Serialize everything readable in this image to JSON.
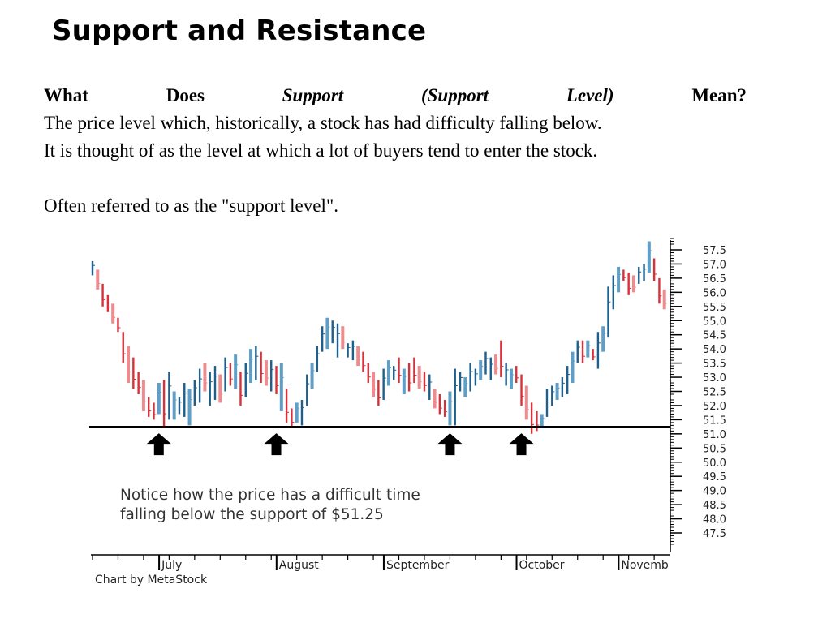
{
  "slide": {
    "title": "Support and Resistance",
    "question_parts": {
      "what": "What",
      "does": "Does",
      "support": "Support",
      "support_level": "(Support Level)",
      "mean": "Mean?"
    },
    "lines": [
      "The price level which, historically, a stock has had difficulty falling below.",
      "It is thought of as the level at which a lot of buyers tend to enter the stock.",
      "Often referred to as the \"support level\"."
    ]
  },
  "chart_data": {
    "type": "bar",
    "subtype": "ohlc-price-bars",
    "annotation": [
      "Notice how the price has a difficult time",
      "falling below the support of $51.25"
    ],
    "credit": "Chart by MetaStock",
    "support_level": 51.25,
    "support_label": "$51.25",
    "y_axis_side": "right",
    "ylim": [
      47.0,
      58.0
    ],
    "yticks": [
      "57.5",
      "57.0",
      "56.5",
      "56.0",
      "55.5",
      "55.0",
      "54.5",
      "54.0",
      "53.5",
      "53.0",
      "52.5",
      "52.0",
      "51.5",
      "51.0",
      "50.5",
      "50.0",
      "49.5",
      "49.0",
      "48.5",
      "48.0",
      "47.5"
    ],
    "months": [
      "July",
      "August",
      "September",
      "October",
      "Novemb"
    ],
    "bars": [
      {
        "h": 57.1,
        "l": 56.6,
        "c": "up"
      },
      {
        "h": 56.8,
        "l": 56.1,
        "c": "down"
      },
      {
        "h": 56.3,
        "l": 55.5,
        "c": "down"
      },
      {
        "h": 55.9,
        "l": 55.3,
        "c": "down"
      },
      {
        "h": 55.6,
        "l": 54.9,
        "c": "down"
      },
      {
        "h": 55.1,
        "l": 54.6,
        "c": "down"
      },
      {
        "h": 54.6,
        "l": 53.5,
        "c": "down"
      },
      {
        "h": 54.1,
        "l": 52.8,
        "c": "down"
      },
      {
        "h": 53.7,
        "l": 52.6,
        "c": "down"
      },
      {
        "h": 53.2,
        "l": 52.4,
        "c": "down"
      },
      {
        "h": 52.9,
        "l": 51.8,
        "c": "down"
      },
      {
        "h": 52.3,
        "l": 51.6,
        "c": "down"
      },
      {
        "h": 52.1,
        "l": 51.5,
        "c": "down"
      },
      {
        "h": 52.8,
        "l": 51.7,
        "c": "up"
      },
      {
        "h": 52.9,
        "l": 51.2,
        "c": "down"
      },
      {
        "h": 53.2,
        "l": 51.5,
        "c": "up"
      },
      {
        "h": 52.5,
        "l": 51.5,
        "c": "up"
      },
      {
        "h": 52.3,
        "l": 51.7,
        "c": "up"
      },
      {
        "h": 52.8,
        "l": 51.6,
        "c": "up"
      },
      {
        "h": 52.6,
        "l": 51.3,
        "c": "up"
      },
      {
        "h": 52.9,
        "l": 52.0,
        "c": "up"
      },
      {
        "h": 53.3,
        "l": 52.1,
        "c": "up"
      },
      {
        "h": 53.5,
        "l": 52.5,
        "c": "down"
      },
      {
        "h": 53.2,
        "l": 52.0,
        "c": "up"
      },
      {
        "h": 53.4,
        "l": 52.2,
        "c": "up"
      },
      {
        "h": 53.1,
        "l": 52.1,
        "c": "down"
      },
      {
        "h": 53.7,
        "l": 52.5,
        "c": "up"
      },
      {
        "h": 53.5,
        "l": 52.7,
        "c": "down"
      },
      {
        "h": 53.8,
        "l": 52.6,
        "c": "up"
      },
      {
        "h": 53.2,
        "l": 52.0,
        "c": "down"
      },
      {
        "h": 53.5,
        "l": 52.3,
        "c": "up"
      },
      {
        "h": 54.0,
        "l": 52.8,
        "c": "up"
      },
      {
        "h": 54.1,
        "l": 52.9,
        "c": "up"
      },
      {
        "h": 53.9,
        "l": 52.8,
        "c": "down"
      },
      {
        "h": 53.6,
        "l": 52.7,
        "c": "down"
      },
      {
        "h": 53.6,
        "l": 52.5,
        "c": "up"
      },
      {
        "h": 53.4,
        "l": 52.4,
        "c": "down"
      },
      {
        "h": 53.5,
        "l": 51.8,
        "c": "up"
      },
      {
        "h": 52.6,
        "l": 51.4,
        "c": "down"
      },
      {
        "h": 51.9,
        "l": 51.2,
        "c": "down"
      },
      {
        "h": 52.1,
        "l": 51.4,
        "c": "up"
      },
      {
        "h": 52.2,
        "l": 51.3,
        "c": "up"
      },
      {
        "h": 53.1,
        "l": 52.0,
        "c": "up"
      },
      {
        "h": 53.5,
        "l": 52.6,
        "c": "up"
      },
      {
        "h": 54.1,
        "l": 53.2,
        "c": "up"
      },
      {
        "h": 54.8,
        "l": 53.9,
        "c": "up"
      },
      {
        "h": 55.1,
        "l": 54.0,
        "c": "up"
      },
      {
        "h": 55.0,
        "l": 54.2,
        "c": "up"
      },
      {
        "h": 54.9,
        "l": 53.7,
        "c": "up"
      },
      {
        "h": 54.8,
        "l": 54.0,
        "c": "down"
      },
      {
        "h": 54.2,
        "l": 53.7,
        "c": "up"
      },
      {
        "h": 54.3,
        "l": 53.6,
        "c": "up"
      },
      {
        "h": 54.1,
        "l": 53.4,
        "c": "down"
      },
      {
        "h": 53.9,
        "l": 53.2,
        "c": "down"
      },
      {
        "h": 53.5,
        "l": 52.8,
        "c": "down"
      },
      {
        "h": 53.2,
        "l": 52.3,
        "c": "down"
      },
      {
        "h": 52.9,
        "l": 52.0,
        "c": "down"
      },
      {
        "h": 53.3,
        "l": 52.2,
        "c": "up"
      },
      {
        "h": 53.6,
        "l": 52.7,
        "c": "up"
      },
      {
        "h": 53.4,
        "l": 52.9,
        "c": "up"
      },
      {
        "h": 53.7,
        "l": 52.8,
        "c": "down"
      },
      {
        "h": 53.3,
        "l": 52.4,
        "c": "up"
      },
      {
        "h": 53.5,
        "l": 52.5,
        "c": "down"
      },
      {
        "h": 53.7,
        "l": 52.8,
        "c": "down"
      },
      {
        "h": 53.4,
        "l": 52.6,
        "c": "down"
      },
      {
        "h": 53.2,
        "l": 52.5,
        "c": "down"
      },
      {
        "h": 53.1,
        "l": 52.2,
        "c": "up"
      },
      {
        "h": 52.6,
        "l": 51.9,
        "c": "down"
      },
      {
        "h": 52.4,
        "l": 51.7,
        "c": "down"
      },
      {
        "h": 52.2,
        "l": 51.6,
        "c": "down"
      },
      {
        "h": 52.5,
        "l": 51.3,
        "c": "up"
      },
      {
        "h": 53.3,
        "l": 51.3,
        "c": "up"
      },
      {
        "h": 53.2,
        "l": 52.5,
        "c": "up"
      },
      {
        "h": 53.0,
        "l": 52.3,
        "c": "up"
      },
      {
        "h": 53.5,
        "l": 52.5,
        "c": "up"
      },
      {
        "h": 53.3,
        "l": 52.7,
        "c": "up"
      },
      {
        "h": 53.6,
        "l": 52.9,
        "c": "up"
      },
      {
        "h": 53.9,
        "l": 53.1,
        "c": "up"
      },
      {
        "h": 53.7,
        "l": 52.9,
        "c": "up"
      },
      {
        "h": 53.8,
        "l": 53.1,
        "c": "down"
      },
      {
        "h": 54.3,
        "l": 53.0,
        "c": "down"
      },
      {
        "h": 53.5,
        "l": 52.7,
        "c": "up"
      },
      {
        "h": 53.3,
        "l": 52.6,
        "c": "up"
      },
      {
        "h": 53.4,
        "l": 52.8,
        "c": "down"
      },
      {
        "h": 53.1,
        "l": 52.0,
        "c": "down"
      },
      {
        "h": 52.7,
        "l": 51.5,
        "c": "down"
      },
      {
        "h": 52.1,
        "l": 51.0,
        "c": "down"
      },
      {
        "h": 51.8,
        "l": 51.1,
        "c": "down"
      },
      {
        "h": 51.7,
        "l": 51.2,
        "c": "up"
      },
      {
        "h": 52.6,
        "l": 51.6,
        "c": "up"
      },
      {
        "h": 52.7,
        "l": 52.0,
        "c": "up"
      },
      {
        "h": 52.8,
        "l": 52.2,
        "c": "up"
      },
      {
        "h": 53.0,
        "l": 52.3,
        "c": "up"
      },
      {
        "h": 53.4,
        "l": 52.4,
        "c": "up"
      },
      {
        "h": 53.9,
        "l": 52.8,
        "c": "up"
      },
      {
        "h": 54.3,
        "l": 53.5,
        "c": "up"
      },
      {
        "h": 54.3,
        "l": 53.5,
        "c": "down"
      },
      {
        "h": 54.3,
        "l": 53.7,
        "c": "up"
      },
      {
        "h": 54.0,
        "l": 53.6,
        "c": "down"
      },
      {
        "h": 54.6,
        "l": 53.3,
        "c": "up"
      },
      {
        "h": 54.8,
        "l": 53.9,
        "c": "up"
      },
      {
        "h": 56.2,
        "l": 54.4,
        "c": "up"
      },
      {
        "h": 56.6,
        "l": 55.4,
        "c": "up"
      },
      {
        "h": 56.9,
        "l": 56.0,
        "c": "up"
      },
      {
        "h": 56.8,
        "l": 56.4,
        "c": "down"
      },
      {
        "h": 56.7,
        "l": 55.9,
        "c": "down"
      },
      {
        "h": 56.6,
        "l": 56.0,
        "c": "down"
      },
      {
        "h": 56.9,
        "l": 56.3,
        "c": "up"
      },
      {
        "h": 57.0,
        "l": 56.4,
        "c": "up"
      },
      {
        "h": 57.8,
        "l": 56.7,
        "c": "up"
      },
      {
        "h": 57.2,
        "l": 56.4,
        "c": "down"
      },
      {
        "h": 56.5,
        "l": 55.6,
        "c": "down"
      },
      {
        "h": 56.1,
        "l": 55.4,
        "c": "down"
      }
    ],
    "support_arrows_at_bar": [
      13,
      36,
      70,
      84
    ],
    "colors": {
      "up": "#1f5f8b",
      "up_light": "#5f9ec7",
      "down": "#d8313a",
      "down_light": "#ee8b8f",
      "axis": "#000000"
    }
  }
}
